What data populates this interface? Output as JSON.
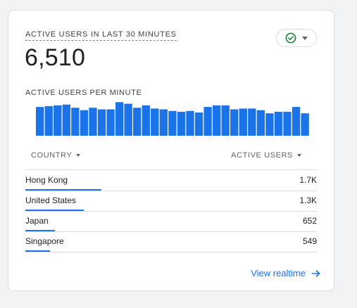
{
  "card": {
    "title": "ACTIVE USERS IN LAST 30 MINUTES",
    "total": "6,510",
    "status_icon": "check-circle-icon",
    "status_color": "#188038",
    "subtitle": "ACTIVE USERS PER MINUTE"
  },
  "chart_data": {
    "type": "bar",
    "bar_color": "#1a73e8",
    "title": "",
    "xlabel": "",
    "ylabel": "",
    "ylim": [
      0,
      44
    ],
    "values": [
      36,
      37,
      38,
      39,
      35,
      32,
      35,
      33,
      33,
      42,
      40,
      35,
      38,
      34,
      33,
      31,
      30,
      31,
      29,
      36,
      38,
      38,
      33,
      34,
      34,
      32,
      28,
      30,
      30,
      36,
      28
    ]
  },
  "table": {
    "headers": {
      "country": "COUNTRY",
      "users": "ACTIVE USERS"
    },
    "rows": [
      {
        "country": "Hong Kong",
        "value": "1.7K",
        "fraction": 0.26
      },
      {
        "country": "United States",
        "value": "1.3K",
        "fraction": 0.2
      },
      {
        "country": "Japan",
        "value": "652",
        "fraction": 0.1
      },
      {
        "country": "Singapore",
        "value": "549",
        "fraction": 0.085
      }
    ]
  },
  "footer": {
    "link_label": "View realtime",
    "link_icon": "arrow-right-icon"
  }
}
